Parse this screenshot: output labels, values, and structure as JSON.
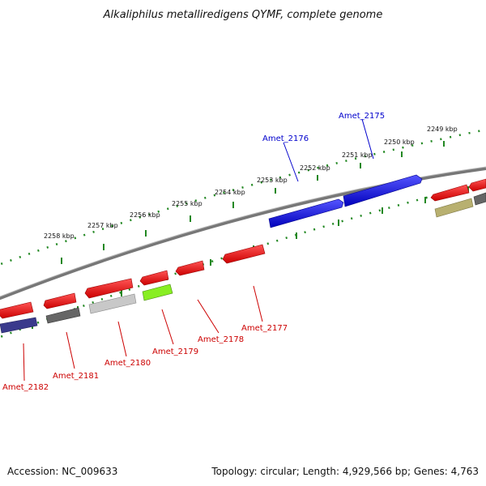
{
  "title": "Alkaliphilus metalliredigens QYMF, complete genome",
  "footer": {
    "accession": "Accession: NC_009633",
    "summary": "Topology: circular; Length: 4,929,566 bp; Genes: 4,763"
  },
  "colors": {
    "forward_gene": "#0000ee",
    "reverse_gene": "#ee0000",
    "backbone": "#888888",
    "tick": "#228822",
    "rna_gene": "#3a3a8c",
    "gray_gene": "#666666",
    "lightgray_gene": "#c8c8c8",
    "green_gene": "#88ee22",
    "olive_gene": "#b8b070"
  },
  "kbp_labels": [
    "2249 kbp",
    "2250 kbp",
    "2251 kbp",
    "2252 kbp",
    "2253 kbp",
    "2254 kbp",
    "2255 kbp",
    "2256 kbp",
    "2257 kbp",
    "2258 kbp"
  ],
  "forward_gene_labels": [
    "Amet_2175",
    "Amet_2176"
  ],
  "reverse_gene_labels": [
    "Amet_2177",
    "Amet_2178",
    "Amet_2179",
    "Amet_2180",
    "Amet_2181",
    "Amet_2182"
  ]
}
